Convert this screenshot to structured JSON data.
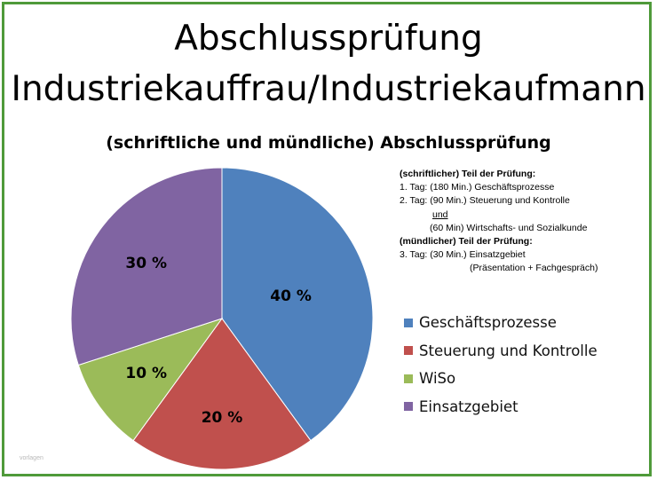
{
  "title_line1": "Abschlussprüfung",
  "title_line2": "Industriekauffrau/Industriekaufmann",
  "subtitle": "(schriftliche und mündliche) Abschlussprüfung",
  "notes": {
    "line1": "(schriftlicher) Teil  der Prüfung:",
    "line2": "1. Tag: (180 Min.) Geschäftsprozesse",
    "line3": "2. Tag: (90 Min.) Steuerung und Kontrolle",
    "line4": "und",
    "line5": "(60 Min)  Wirtschafts- und Sozialkunde",
    "line6": "(mündlicher) Teil der Prüfung:",
    "line7": "3. Tag: (30 Min.) Einsatzgebiet",
    "line8": "(Präsentation + Fachgespräch)"
  },
  "watermark": "vorlagen",
  "chart_data": {
    "type": "pie",
    "title": "(schriftliche und mündliche) Abschlussprüfung",
    "start_angle_deg": 0,
    "direction": "clockwise",
    "legend_position": "right",
    "slices": [
      {
        "name": "Geschäftsprozesse",
        "value": 40,
        "label": "40 %",
        "color": "#4f81bd"
      },
      {
        "name": "Steuerung und Kontrolle",
        "value": 20,
        "label": "20 %",
        "color": "#c0504d"
      },
      {
        "name": "WiSo",
        "value": 10,
        "label": "10 %",
        "color": "#9bbb59"
      },
      {
        "name": "Einsatzgebiet",
        "value": 30,
        "label": "30 %",
        "color": "#8064a2"
      }
    ]
  }
}
